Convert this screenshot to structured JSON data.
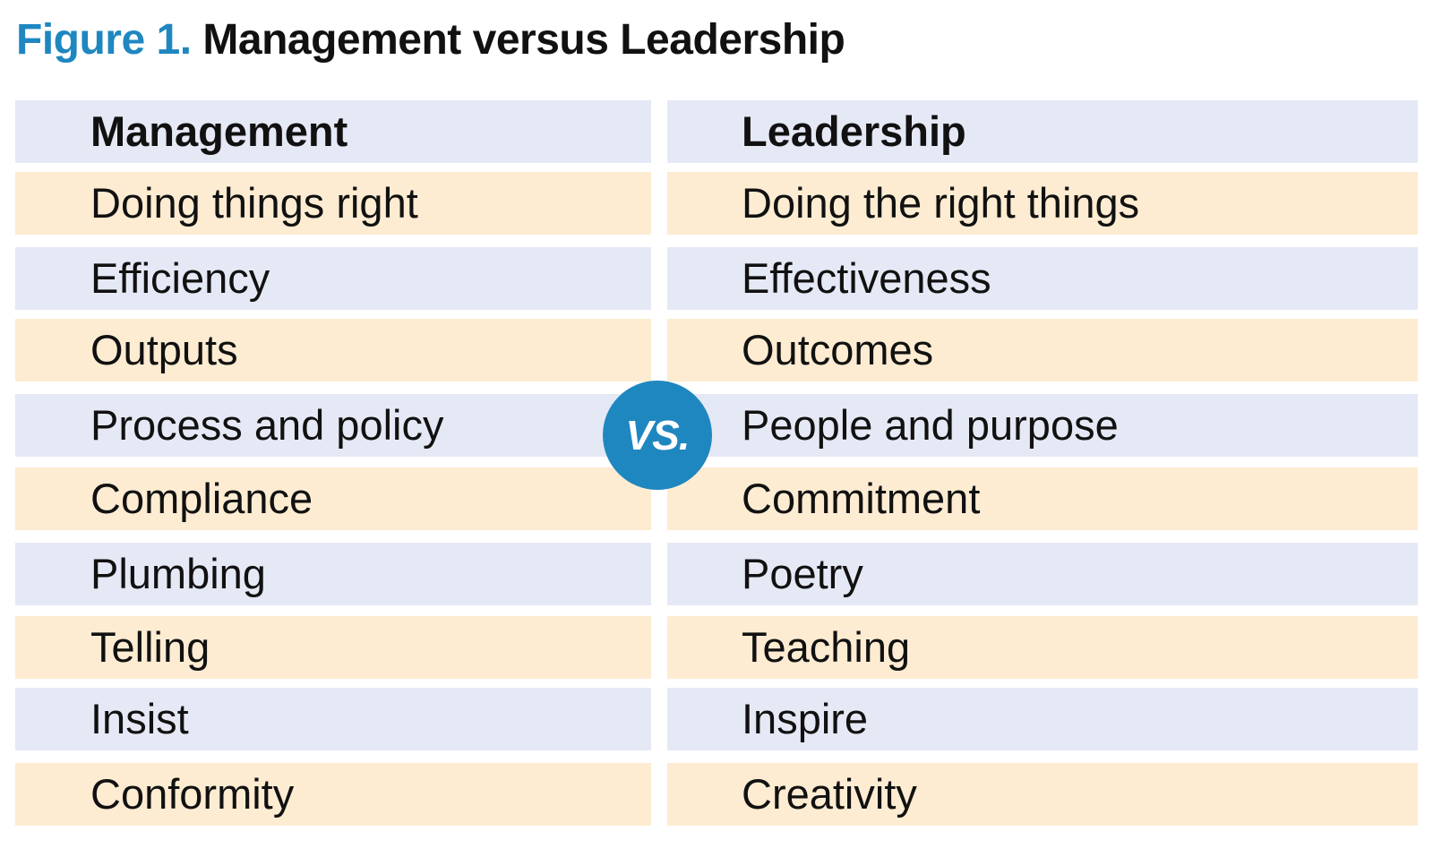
{
  "figure": {
    "label": "Figure 1.",
    "caption": "Management versus Leadership"
  },
  "columns": {
    "left_header": "Management",
    "right_header": "Leadership"
  },
  "rows": [
    {
      "management": "Doing things right",
      "leadership": "Doing the right things"
    },
    {
      "management": "Efficiency",
      "leadership": "Effectiveness"
    },
    {
      "management": "Outputs",
      "leadership": "Outcomes"
    },
    {
      "management": "Process and policy",
      "leadership": "People and purpose"
    },
    {
      "management": "Compliance",
      "leadership": "Commitment"
    },
    {
      "management": "Plumbing",
      "leadership": "Poetry"
    },
    {
      "management": "Telling",
      "leadership": "Teaching"
    },
    {
      "management": "Insist",
      "leadership": "Inspire"
    },
    {
      "management": "Conformity",
      "leadership": "Creativity"
    }
  ],
  "badge": {
    "text": "VS."
  },
  "colors": {
    "accent": "#1f87c0",
    "header_row_bg": "#e5e9f5",
    "alt_row_bg": "#fdecd2",
    "text": "#111111"
  }
}
